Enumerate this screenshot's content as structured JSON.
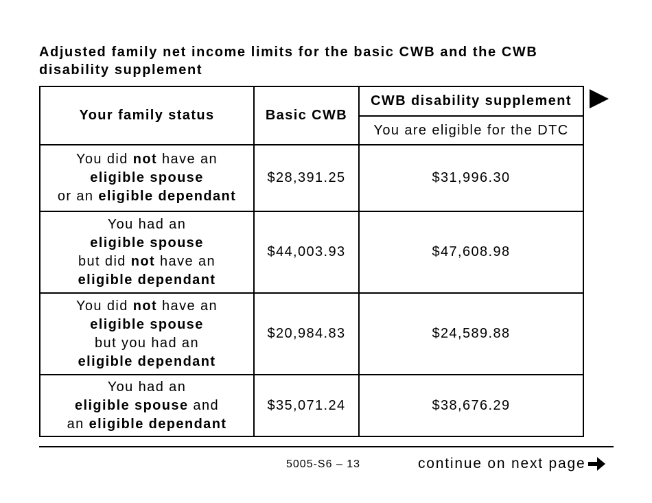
{
  "title": "Adjusted family net income limits for the basic CWB and the CWB disability supplement",
  "table": {
    "headers": {
      "family_status": "Your family status",
      "basic": "Basic CWB",
      "supplement": "CWB disability supplement",
      "supplement_sub": "You are eligible for the DTC"
    },
    "rows": [
      {
        "status": [
          [
            [
              "You did ",
              false
            ],
            [
              "not",
              true
            ],
            [
              " have an",
              false
            ]
          ],
          [
            [
              "eligible spouse",
              true
            ]
          ],
          [
            [
              "or an ",
              false
            ],
            [
              "eligible dependant",
              true
            ]
          ]
        ],
        "basic": "$28,391.25",
        "supplement": "$31,996.30"
      },
      {
        "status": [
          [
            [
              "You had an",
              false
            ]
          ],
          [
            [
              "eligible spouse",
              true
            ]
          ],
          [
            [
              "but did ",
              false
            ],
            [
              "not",
              true
            ],
            [
              " have an",
              false
            ]
          ],
          [
            [
              "eligible dependant",
              true
            ]
          ]
        ],
        "basic": "$44,003.93",
        "supplement": "$47,608.98"
      },
      {
        "status": [
          [
            [
              "You did ",
              false
            ],
            [
              "not",
              true
            ],
            [
              " have an",
              false
            ]
          ],
          [
            [
              "eligible spouse",
              true
            ]
          ],
          [
            [
              "but you had an",
              false
            ]
          ],
          [
            [
              "eligible dependant",
              true
            ]
          ]
        ],
        "basic": "$20,984.83",
        "supplement": "$24,589.88"
      },
      {
        "status": [
          [
            [
              "You had an",
              false
            ]
          ],
          [
            [
              "eligible spouse",
              true
            ],
            [
              " and",
              false
            ]
          ],
          [
            [
              "an ",
              false
            ],
            [
              "eligible dependant",
              true
            ]
          ]
        ],
        "basic": "$35,071.24",
        "supplement": "$38,676.29"
      }
    ]
  },
  "footer": {
    "code": "5005-S6 – 13",
    "continue": "continue on next page",
    "continue_icon": "arrow-right-icon",
    "next_icon": "triangle-right-icon"
  }
}
